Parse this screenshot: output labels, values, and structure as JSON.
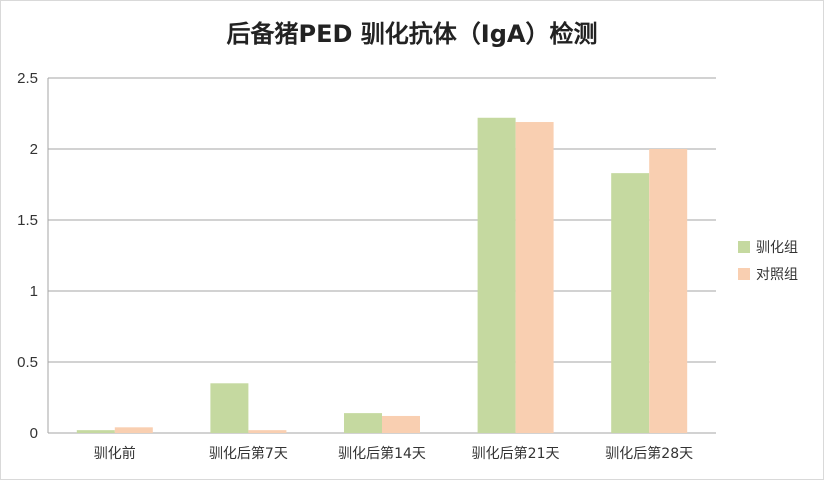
{
  "chart_data": {
    "type": "bar",
    "title": "后备猪PED 驯化抗体（IgA）检测",
    "categories": [
      "驯化前",
      "驯化后第7天",
      "驯化后第14天",
      "驯化后第21天",
      "驯化后第28天"
    ],
    "series": [
      {
        "name": "驯化组",
        "color": "#c5d9a0",
        "values": [
          0.02,
          0.35,
          0.14,
          2.22,
          1.83
        ]
      },
      {
        "name": "对照组",
        "color": "#f9cfb1",
        "values": [
          0.04,
          0.02,
          0.12,
          2.19,
          2.0
        ]
      }
    ],
    "ylim": [
      0,
      2.5
    ],
    "yticks": [
      "0",
      "0.5",
      "1",
      "1.5",
      "2",
      "2.5"
    ],
    "grid": true,
    "legend": "right"
  }
}
